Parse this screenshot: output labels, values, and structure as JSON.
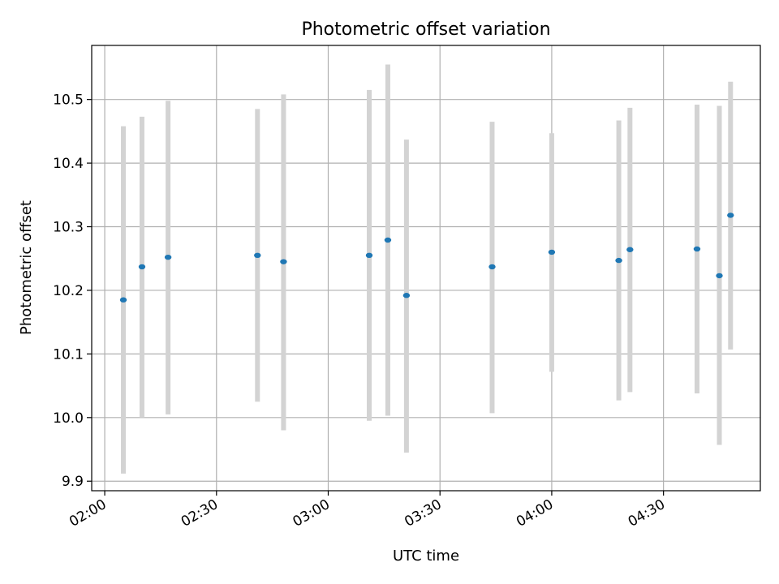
{
  "chart_data": {
    "type": "scatter",
    "title": "Photometric offset variation",
    "xlabel": "UTC time",
    "ylabel": "Photometric offset",
    "x_ticks": [
      "02:00",
      "02:30",
      "03:00",
      "03:30",
      "04:00",
      "04:30"
    ],
    "y_ticks": [
      "9.9",
      "10.0",
      "10.1",
      "10.2",
      "10.3",
      "10.4",
      "10.5"
    ],
    "xlim": [
      "01:56.5",
      "04:56"
    ],
    "ylim": [
      9.885,
      10.585
    ],
    "grid": true,
    "colors": {
      "point": "#1f77b4",
      "errorbar": "#d3d3d3",
      "grid": "#b0b0b0"
    },
    "points": [
      {
        "x": "02:05",
        "y": 10.185,
        "low": 9.912,
        "high": 10.458
      },
      {
        "x": "02:10",
        "y": 10.237,
        "low": 10.0,
        "high": 10.473
      },
      {
        "x": "02:17",
        "y": 10.252,
        "low": 10.005,
        "high": 10.498
      },
      {
        "x": "02:41",
        "y": 10.255,
        "low": 10.025,
        "high": 10.485
      },
      {
        "x": "02:48",
        "y": 10.245,
        "low": 9.98,
        "high": 10.508
      },
      {
        "x": "03:11",
        "y": 10.255,
        "low": 9.995,
        "high": 10.515
      },
      {
        "x": "03:16",
        "y": 10.279,
        "low": 10.003,
        "high": 10.555
      },
      {
        "x": "03:21",
        "y": 10.192,
        "low": 9.945,
        "high": 10.437
      },
      {
        "x": "03:44",
        "y": 10.237,
        "low": 10.007,
        "high": 10.465
      },
      {
        "x": "04:00",
        "y": 10.26,
        "low": 10.072,
        "high": 10.447
      },
      {
        "x": "04:18",
        "y": 10.247,
        "low": 10.027,
        "high": 10.467
      },
      {
        "x": "04:21",
        "y": 10.264,
        "low": 10.04,
        "high": 10.487
      },
      {
        "x": "04:39",
        "y": 10.265,
        "low": 10.038,
        "high": 10.492
      },
      {
        "x": "04:45",
        "y": 10.223,
        "low": 9.957,
        "high": 10.49
      },
      {
        "x": "04:48",
        "y": 10.318,
        "low": 10.107,
        "high": 10.528
      }
    ]
  }
}
